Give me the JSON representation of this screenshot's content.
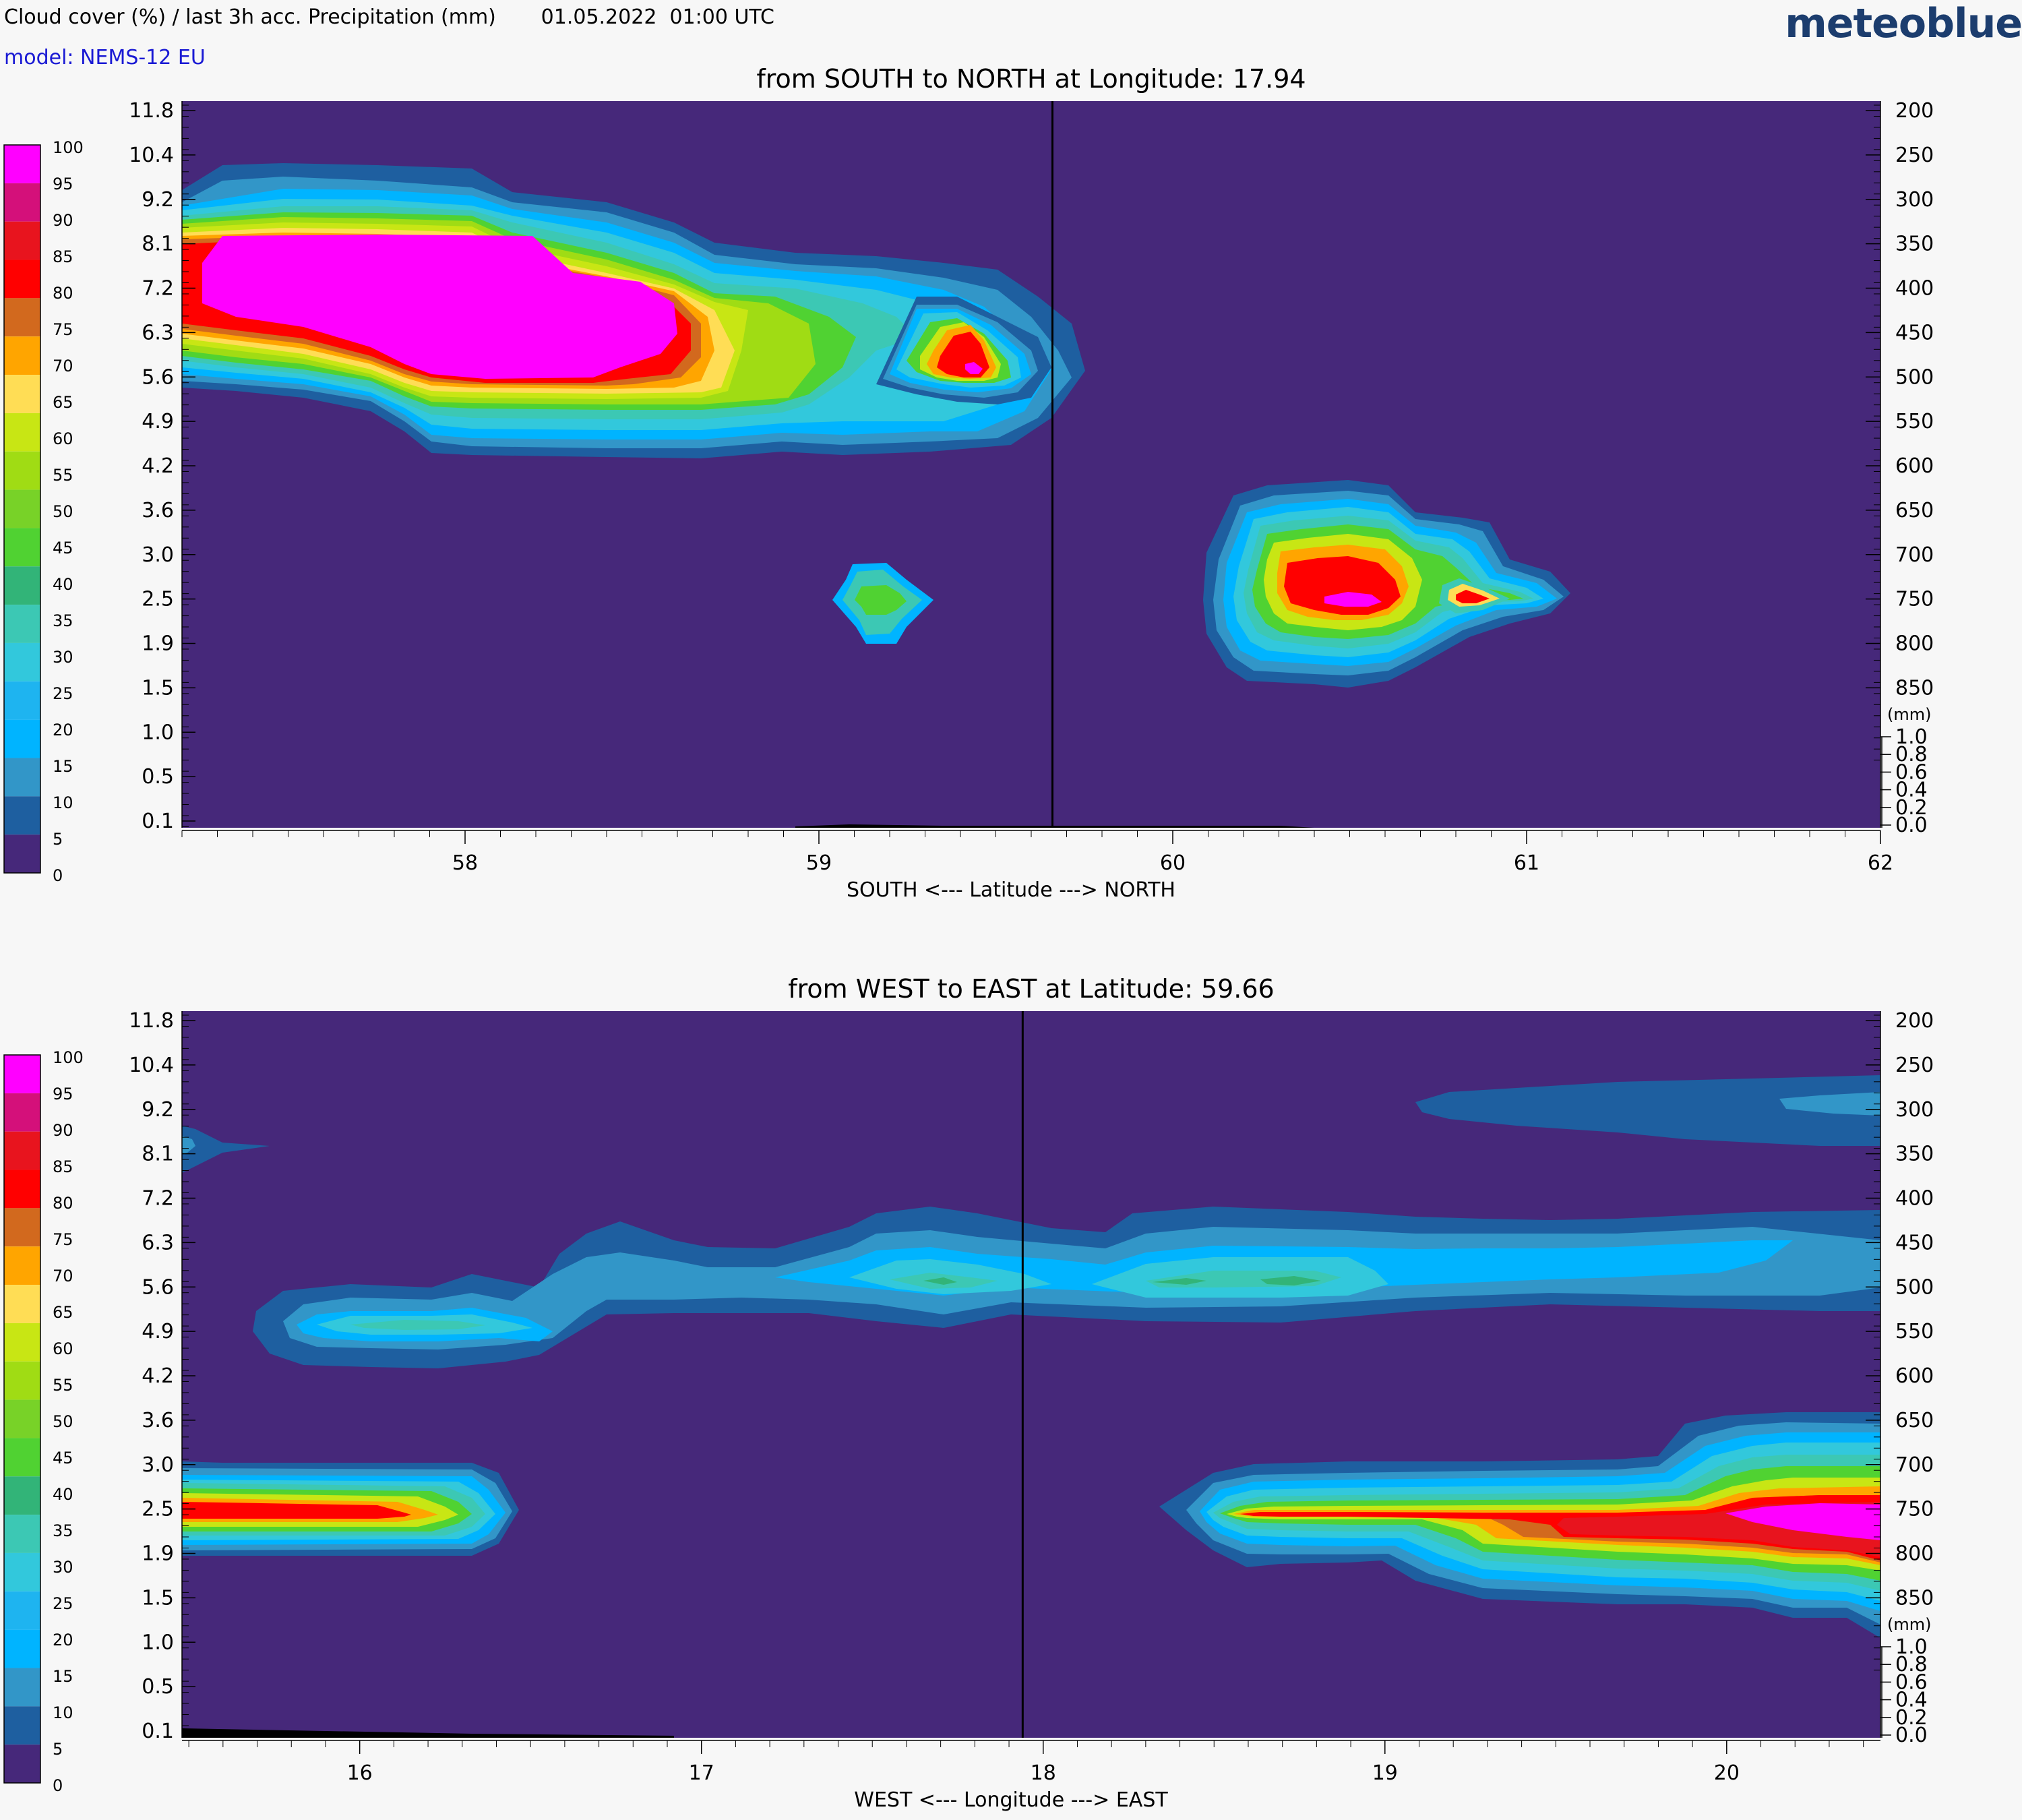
{
  "header": {
    "title": "Cloud cover (%) / last 3h acc. Precipitation (mm)       01.05.2022  01:00 UTC",
    "model": "model: NEMS-12 EU",
    "logo": "meteoblue"
  },
  "legend": {
    "labels": [
      "100",
      "95",
      "90",
      "85",
      "80",
      "75",
      "70",
      "65",
      "60",
      "55",
      "50",
      "45",
      "40",
      "35",
      "30",
      "25",
      "20",
      "15",
      "10",
      "5",
      "0"
    ],
    "colors": [
      "#ff00ff",
      "#d4107a",
      "#e8141e",
      "#ff0000",
      "#d2691e",
      "#ffa500",
      "#ffdd55",
      "#c8e614",
      "#a0dc14",
      "#78d228",
      "#50d232",
      "#32b478",
      "#3cc8b4",
      "#32c8dc",
      "#1eb4f0",
      "#00b4ff",
      "#3296c8",
      "#1e5fa0",
      "#46287a"
    ]
  },
  "chart_data": [
    {
      "type": "heatmap",
      "title": "from SOUTH to NORTH at Longitude:  17.94",
      "xlabel": "SOUTH <---   Latitude   ---> NORTH",
      "x_ticks": [
        "58",
        "59",
        "60",
        "61",
        "62"
      ],
      "xlim": [
        57.2,
        62.0
      ],
      "left_ticks": [
        "11.8",
        "10.4",
        "9.2",
        "8.1",
        "7.2",
        "6.3",
        "5.6",
        "4.9",
        "4.2",
        "3.6",
        "3.0",
        "2.5",
        "1.9",
        "1.5",
        "1.0",
        "0.5",
        "0.1"
      ],
      "right_ticks": [
        "200",
        "250",
        "300",
        "350",
        "400",
        "450",
        "500",
        "550",
        "600",
        "650",
        "700",
        "750",
        "800",
        "850"
      ],
      "precip_label": "(mm)",
      "precip_ticks": [
        "1.0",
        "0.8",
        "0.6",
        "0.4",
        "0.2",
        "0.0"
      ],
      "marker_x": 59.66,
      "features": [
        {
          "name": "mid-level cloud band",
          "x_range": [
            57.2,
            59.8
          ],
          "height_km": [
            4.5,
            10.0
          ],
          "max_cover": 100
        },
        {
          "name": "cell near 59.5",
          "x_center": 59.45,
          "height_km": 5.9,
          "max_cover": 100
        },
        {
          "name": "small cell near 59.1",
          "x_center": 59.15,
          "height_km": 2.5,
          "max_cover": 45
        },
        {
          "name": "low cloud cell",
          "x_range": [
            60.1,
            61.1
          ],
          "height_km": [
            1.5,
            3.9
          ],
          "max_cover": 100
        }
      ]
    },
    {
      "type": "heatmap",
      "title": "from WEST to EAST at Latitude:  59.66",
      "xlabel": "WEST <---   Longitude   ---> EAST",
      "x_ticks": [
        "16",
        "17",
        "18",
        "19",
        "20"
      ],
      "xlim": [
        15.48,
        20.45
      ],
      "left_ticks": [
        "11.8",
        "10.4",
        "9.2",
        "8.1",
        "7.2",
        "6.3",
        "5.6",
        "4.9",
        "4.2",
        "3.6",
        "3.0",
        "2.5",
        "1.9",
        "1.5",
        "1.0",
        "0.5",
        "0.1"
      ],
      "right_ticks": [
        "200",
        "250",
        "300",
        "350",
        "400",
        "450",
        "500",
        "550",
        "600",
        "650",
        "700",
        "750",
        "800",
        "850"
      ],
      "precip_label": "(mm)",
      "precip_ticks": [
        "1.0",
        "0.8",
        "0.6",
        "0.4",
        "0.2",
        "0.0"
      ],
      "marker_x": 17.94,
      "features": [
        {
          "name": "mid-level cloud band",
          "x_range": [
            15.7,
            20.45
          ],
          "height_km": [
            4.6,
            6.6
          ],
          "max_cover": 40
        },
        {
          "name": "upper thin layer",
          "x_range": [
            19.1,
            20.45
          ],
          "height_km": [
            8.1,
            9.5
          ],
          "max_cover": 15
        },
        {
          "name": "western low cloud",
          "x_range": [
            15.48,
            16.45
          ],
          "height_km": [
            1.9,
            3.0
          ],
          "max_cover": 90
        },
        {
          "name": "eastern low cloud",
          "x_range": [
            18.3,
            20.45
          ],
          "height_km": [
            1.0,
            3.6
          ],
          "max_cover": 100
        }
      ]
    }
  ]
}
